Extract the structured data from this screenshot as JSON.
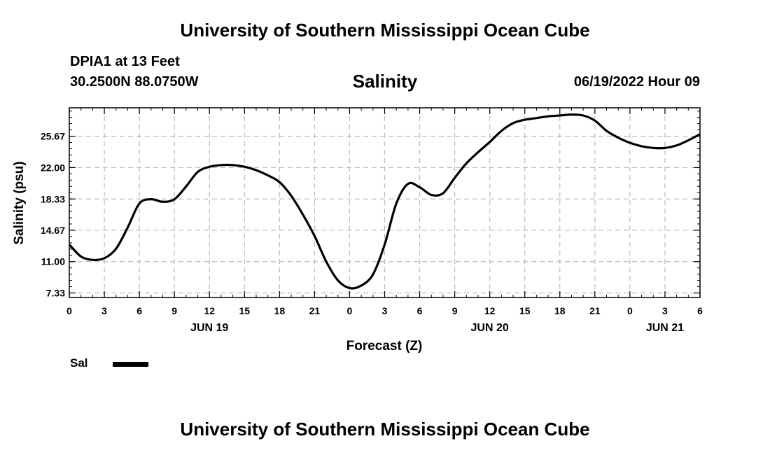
{
  "header": {
    "title": "University of Southern Mississippi Ocean Cube",
    "station": "DPIA1 at 13 Feet",
    "coordinates": "30.2500N  88.0750W",
    "datetime": "06/19/2022 Hour 09"
  },
  "footer": {
    "title": "University of Southern Mississippi Ocean Cube"
  },
  "legend": {
    "label": "Sal",
    "color": "#000000"
  },
  "chart_data": {
    "type": "line",
    "title": "Salinity",
    "xlabel": "Forecast (Z)",
    "ylabel": "Salinity (psu)",
    "ylim": [
      6.8,
      29.0
    ],
    "xlim": [
      0,
      54
    ],
    "grid": true,
    "legend_position": "bottom-left",
    "y_ticks": [
      7.33,
      11.0,
      14.67,
      18.33,
      22.0,
      25.67
    ],
    "y_tick_labels": [
      "7.33",
      "11.00",
      "14.67",
      "18.33",
      "22.00",
      "25.67"
    ],
    "x_ticks": [
      0,
      3,
      6,
      9,
      12,
      15,
      18,
      21,
      24,
      27,
      30,
      33,
      36,
      39,
      42,
      45,
      48,
      51,
      54
    ],
    "x_tick_labels": [
      "0",
      "3",
      "6",
      "9",
      "12",
      "15",
      "18",
      "21",
      "0",
      "3",
      "6",
      "9",
      "12",
      "15",
      "18",
      "21",
      "0",
      "3",
      "6"
    ],
    "date_labels": [
      {
        "label": "JUN 19",
        "x": 12
      },
      {
        "label": "JUN 20",
        "x": 36
      },
      {
        "label": "JUN 21",
        "x": 51
      }
    ],
    "series": [
      {
        "name": "Sal",
        "x": [
          0,
          1,
          2,
          3,
          4,
          5,
          6,
          7,
          8,
          9,
          10,
          11,
          12,
          13,
          14,
          15,
          16,
          17,
          18,
          19,
          20,
          21,
          22,
          23,
          24,
          25,
          26,
          27,
          28,
          29,
          30,
          31,
          32,
          33,
          34,
          35,
          36,
          37,
          38,
          39,
          40,
          41,
          42,
          43,
          44,
          45,
          46,
          47,
          48,
          49,
          50,
          51,
          52,
          53,
          54
        ],
        "values": [
          13.0,
          11.6,
          11.2,
          11.4,
          12.5,
          15.0,
          17.8,
          18.3,
          18.0,
          18.3,
          19.8,
          21.5,
          22.1,
          22.3,
          22.3,
          22.1,
          21.7,
          21.1,
          20.3,
          18.7,
          16.5,
          14.0,
          11.0,
          8.8,
          7.9,
          8.2,
          9.5,
          13.0,
          17.8,
          20.1,
          19.7,
          18.8,
          19.0,
          20.8,
          22.5,
          23.8,
          25.0,
          26.3,
          27.2,
          27.6,
          27.8,
          28.0,
          28.1,
          28.2,
          28.1,
          27.5,
          26.3,
          25.5,
          24.9,
          24.5,
          24.3,
          24.3,
          24.6,
          25.2,
          25.9
        ]
      }
    ]
  }
}
